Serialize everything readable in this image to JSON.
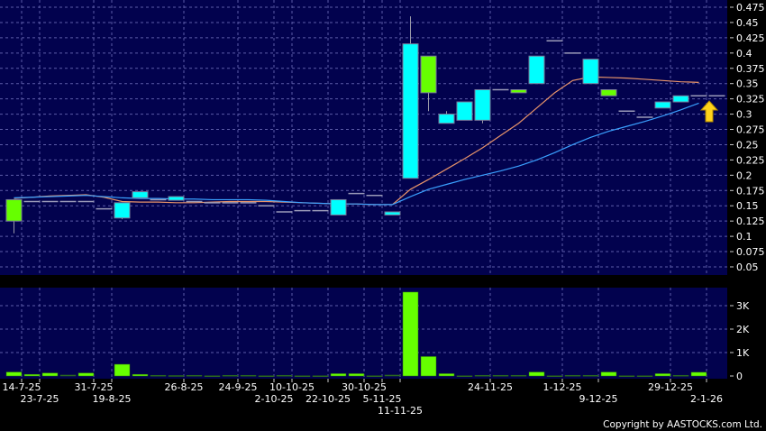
{
  "chart_data": [
    {
      "type": "candlestick",
      "y_ticks": [
        "0.475",
        "0.45",
        "0.425",
        "0.4",
        "0.375",
        "0.35",
        "0.325",
        "0.3",
        "0.275",
        "0.25",
        "0.225",
        "0.2",
        "0.175",
        "0.15",
        "0.125",
        "0.1",
        "0.075",
        "0.05"
      ],
      "ylim": [
        0.05,
        0.475
      ],
      "grid": true,
      "x_ticks": [
        {
          "slot": 0,
          "label": "14-7-25"
        },
        {
          "slot": 1,
          "label": "23-7-25"
        },
        {
          "slot": 4,
          "label": "31-7-25"
        },
        {
          "slot": 5,
          "label": "19-8-25"
        },
        {
          "slot": 9,
          "label": "26-8-25"
        },
        {
          "slot": 12,
          "label": "24-9-25"
        },
        {
          "slot": 14,
          "label": "2-10-25"
        },
        {
          "slot": 15,
          "label": "10-10-25"
        },
        {
          "slot": 17,
          "label": "22-10-25"
        },
        {
          "slot": 19,
          "label": "30-10-25"
        },
        {
          "slot": 20,
          "label": "5-11-25"
        },
        {
          "slot": 21,
          "label": "11-11-25"
        },
        {
          "slot": 26,
          "label": "24-11-25"
        },
        {
          "slot": 30,
          "label": "1-12-25"
        },
        {
          "slot": 32,
          "label": "9-12-25"
        },
        {
          "slot": 36,
          "label": "29-12-25"
        },
        {
          "slot": 38,
          "label": "2-1-26"
        }
      ],
      "candles": [
        [
          0.16,
          0.16,
          0.105,
          0.125
        ],
        [
          0.157,
          0.157,
          0.157,
          0.157
        ],
        [
          0.157,
          0.157,
          0.157,
          0.157
        ],
        [
          0.157,
          0.157,
          0.157,
          0.157
        ],
        [
          0.157,
          0.157,
          0.157,
          0.157
        ],
        [
          0.145,
          0.145,
          0.145,
          0.145
        ],
        [
          0.13,
          0.155,
          0.128,
          0.155
        ],
        [
          0.163,
          0.173,
          0.163,
          0.173
        ],
        [
          0.16,
          0.16,
          0.16,
          0.16
        ],
        [
          0.159,
          0.165,
          0.159,
          0.165
        ],
        [
          0.157,
          0.157,
          0.157,
          0.157
        ],
        [
          0.155,
          0.155,
          0.155,
          0.155
        ],
        [
          0.155,
          0.155,
          0.155,
          0.155
        ],
        [
          0.155,
          0.155,
          0.155,
          0.155
        ],
        [
          0.15,
          0.15,
          0.15,
          0.15
        ],
        [
          0.14,
          0.14,
          0.14,
          0.14
        ],
        [
          0.142,
          0.142,
          0.142,
          0.142
        ],
        [
          0.142,
          0.142,
          0.142,
          0.142
        ],
        [
          0.135,
          0.16,
          0.135,
          0.16
        ],
        [
          0.17,
          0.17,
          0.17,
          0.17
        ],
        [
          0.167,
          0.167,
          0.167,
          0.167
        ],
        [
          0.135,
          0.14,
          0.135,
          0.14
        ],
        [
          0.195,
          0.46,
          0.195,
          0.415
        ],
        [
          0.395,
          0.395,
          0.305,
          0.335
        ],
        [
          0.285,
          0.305,
          0.285,
          0.3
        ],
        [
          0.29,
          0.32,
          0.29,
          0.32
        ],
        [
          0.29,
          0.34,
          0.285,
          0.34
        ],
        [
          0.34,
          0.34,
          0.34,
          0.34
        ],
        [
          0.34,
          0.34,
          0.335,
          0.335
        ],
        [
          0.35,
          0.395,
          0.35,
          0.395
        ],
        [
          0.42,
          0.42,
          0.42,
          0.42
        ],
        [
          0.4,
          0.4,
          0.4,
          0.4
        ],
        [
          0.35,
          0.39,
          0.35,
          0.39
        ],
        [
          0.34,
          0.34,
          0.33,
          0.33
        ],
        [
          0.305,
          0.305,
          0.305,
          0.305
        ],
        [
          0.295,
          0.295,
          0.295,
          0.295
        ],
        [
          0.31,
          0.32,
          0.31,
          0.32
        ],
        [
          0.32,
          0.33,
          0.32,
          0.33
        ],
        [
          0.33,
          0.33,
          0.33,
          0.33
        ],
        [
          0.33,
          0.33,
          0.33,
          0.33
        ]
      ],
      "candle_format": [
        "open",
        "high",
        "low",
        "close"
      ],
      "series": [
        {
          "values": [
            0.162,
            0.164,
            0.166,
            0.167,
            0.168,
            0.164,
            0.157,
            0.156,
            0.156,
            0.155,
            0.155,
            0.156,
            0.157,
            0.157,
            0.157,
            0.156,
            0.155,
            0.154,
            0.153,
            0.153,
            0.152,
            0.152,
            0.177,
            0.193,
            0.21,
            0.227,
            0.245,
            0.265,
            0.285,
            0.31,
            0.335,
            0.355,
            0.361,
            0.36,
            0.359,
            0.357,
            0.355,
            0.353,
            0.352
          ],
          "color": "#e8946a"
        },
        {
          "values": [
            0.163,
            0.164,
            0.165,
            0.166,
            0.167,
            0.165,
            0.163,
            0.162,
            0.162,
            0.161,
            0.161,
            0.16,
            0.16,
            0.16,
            0.159,
            0.157,
            0.155,
            0.154,
            0.153,
            0.153,
            0.152,
            0.152,
            0.165,
            0.177,
            0.185,
            0.193,
            0.2,
            0.207,
            0.215,
            0.225,
            0.237,
            0.25,
            0.262,
            0.272,
            0.28,
            0.288,
            0.297,
            0.307,
            0.318
          ],
          "color": "#3aa0ff"
        }
      ],
      "up_color": "#00ffff",
      "down_color": "#66ff00"
    },
    {
      "type": "bar",
      "y_ticks": [
        "0",
        "1K",
        "2K",
        "3K"
      ],
      "ylim": [
        0,
        3.7
      ],
      "unit": "K",
      "values": [
        0.17,
        0.07,
        0.13,
        0.04,
        0.13,
        0,
        0.5,
        0.07,
        0.03,
        0.02,
        0.03,
        0.01,
        0.03,
        0.03,
        0.01,
        0.03,
        0.01,
        0.01,
        0.1,
        0.1,
        0.01,
        0.04,
        3.58,
        0.83,
        0.1,
        0.01,
        0.03,
        0.03,
        0.03,
        0.17,
        0.01,
        0.03,
        0.03,
        0.17,
        0.01,
        0.01,
        0.1,
        0.03,
        0.16,
        0
      ],
      "color": "#66ff00"
    }
  ],
  "copyright": "Copyright by AASTOCKS.com Ltd.",
  "marker_icon": "yellow-up-arrow"
}
